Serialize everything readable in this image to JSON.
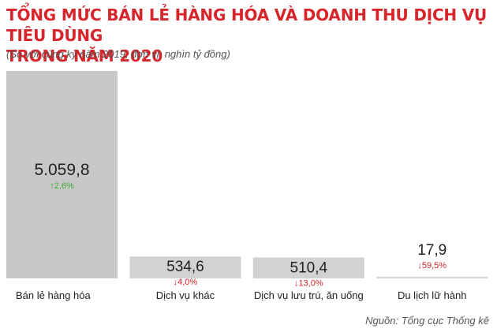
{
  "title_line1": "TỔNG MỨC BÁN LẺ HÀNG HÓA VÀ DOANH THU DỊCH VỤ TIÊU DÙNG",
  "title_line2": "TRONG NĂM 2020",
  "subtitle": "(So với cùng kỳ năm 2019, đơn vị: nghìn tỷ đồng)",
  "source": "Nguồn: Tổng cục Thống kê",
  "colors": {
    "title": "#d7252c",
    "bar_main": "#c8c8c8",
    "bar_other": "#d2d2d2",
    "increase": "#3aaa35",
    "decrease": "#d7252c"
  },
  "chart_data": {
    "type": "bar",
    "categories": [
      "Bán lẻ hàng hóa",
      "Dịch vụ khác",
      "Dịch vụ lưu trú, ăn uống",
      "Du lịch lữ hành"
    ],
    "values": [
      5059.8,
      534.6,
      510.4,
      17.9
    ],
    "value_labels": [
      "5.059,8",
      "534,6",
      "510,4",
      "17,9"
    ],
    "changes": [
      {
        "label": "2,6%",
        "direction": "up",
        "arrow": "↑"
      },
      {
        "label": "4,0%",
        "direction": "down",
        "arrow": "↓"
      },
      {
        "label": "13,0%",
        "direction": "down",
        "arrow": "↓"
      },
      {
        "label": "59,5%",
        "direction": "down",
        "arrow": "↓"
      }
    ],
    "ylim": [
      0,
      5059.8
    ],
    "grid": false,
    "legend": "none"
  }
}
